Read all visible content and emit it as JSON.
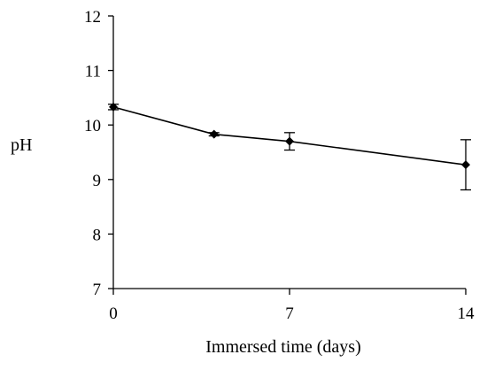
{
  "chart_data": {
    "type": "line",
    "title": "",
    "xlabel": "Immersed time (days)",
    "ylabel": "pH",
    "xlim": [
      0,
      14
    ],
    "ylim": [
      7,
      12
    ],
    "xticks": [
      0,
      7,
      14
    ],
    "xtick_labels": [
      "0",
      "7",
      "14"
    ],
    "yticks": [
      7,
      8,
      9,
      10,
      11,
      12
    ],
    "ytick_labels": [
      "7",
      "8",
      "9",
      "10",
      "11",
      "12"
    ],
    "grid": false,
    "legend": "none",
    "series": [
      {
        "points": [
          {
            "x": 0,
            "y": 10.33,
            "err": 0.05
          },
          {
            "x": 4,
            "y": 9.83,
            "err": 0.03
          },
          {
            "x": 7,
            "y": 9.7,
            "err": 0.16
          },
          {
            "x": 14,
            "y": 9.27,
            "err": 0.46
          }
        ],
        "color": "#000000"
      }
    ]
  }
}
